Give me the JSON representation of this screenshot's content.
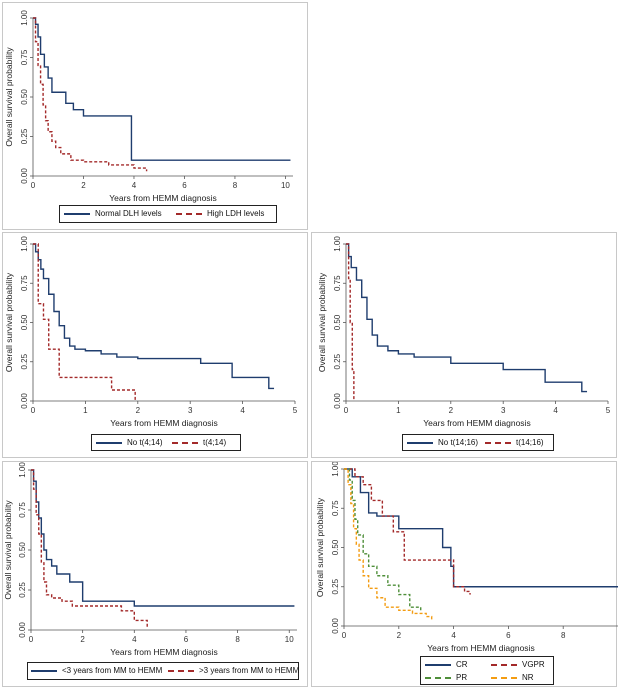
{
  "colors": {
    "blue": "#1f3d6e",
    "red": "#a32a2a",
    "green": "#4f8f3a",
    "orange": "#f39c12"
  },
  "chart_data": [
    {
      "id": "p1",
      "type": "line",
      "xlabel": "Years from HEMM diagnosis",
      "ylabel": "Overall survival probability",
      "xlim": [
        0,
        10.3
      ],
      "ylim": [
        0,
        1
      ],
      "xticks": [
        "0",
        "2",
        "4",
        "6",
        "8",
        "10"
      ],
      "yticks": [
        "0.00",
        "0.25",
        "0.50",
        "0.75",
        "1.00"
      ],
      "series": [
        {
          "name": "Normal DLH levels",
          "color": "#1f3d6e",
          "dash": "solid",
          "x": [
            0,
            0.1,
            0.2,
            0.3,
            0.45,
            0.6,
            0.75,
            0.95,
            1.3,
            1.6,
            2.0,
            3.0,
            3.8,
            3.9,
            10.2
          ],
          "y": [
            1.0,
            0.96,
            0.88,
            0.77,
            0.69,
            0.62,
            0.53,
            0.53,
            0.46,
            0.42,
            0.38,
            0.38,
            0.38,
            0.1,
            0.1
          ]
        },
        {
          "name": "High LDH levels",
          "color": "#a32a2a",
          "dash": "dashed",
          "x": [
            0,
            0.1,
            0.2,
            0.3,
            0.4,
            0.5,
            0.6,
            0.75,
            0.9,
            1.1,
            1.5,
            2.0,
            3.0,
            4.0,
            4.5
          ],
          "y": [
            1.0,
            0.85,
            0.7,
            0.58,
            0.45,
            0.35,
            0.28,
            0.22,
            0.18,
            0.14,
            0.1,
            0.09,
            0.07,
            0.05,
            0.03
          ]
        }
      ]
    },
    {
      "id": "p2",
      "type": "line",
      "xlabel": "Years from HEMM diagnosis",
      "ylabel": "Overall survival probability",
      "xlim": [
        0,
        5
      ],
      "ylim": [
        0,
        1
      ],
      "xticks": [
        "0",
        "1",
        "2",
        "3",
        "4",
        "5"
      ],
      "yticks": [
        "0.00",
        "0.25",
        "0.50",
        "0.75",
        "1.00"
      ],
      "series": [
        {
          "name": "No t(4;14)",
          "color": "#1f3d6e",
          "dash": "solid",
          "x": [
            0,
            0.05,
            0.1,
            0.15,
            0.2,
            0.3,
            0.4,
            0.5,
            0.6,
            0.7,
            0.8,
            1.0,
            1.3,
            1.6,
            2.0,
            3.2,
            3.8,
            4.5,
            4.6
          ],
          "y": [
            1.0,
            0.95,
            0.9,
            0.84,
            0.78,
            0.68,
            0.57,
            0.48,
            0.4,
            0.35,
            0.33,
            0.32,
            0.3,
            0.28,
            0.27,
            0.24,
            0.15,
            0.08,
            0.08
          ]
        },
        {
          "name": "t(4;14)",
          "color": "#a32a2a",
          "dash": "dashed",
          "x": [
            0,
            0.1,
            0.2,
            0.3,
            0.5,
            1.3,
            1.5,
            1.95
          ],
          "y": [
            1.0,
            0.62,
            0.52,
            0.33,
            0.15,
            0.15,
            0.07,
            0.0
          ]
        }
      ]
    },
    {
      "id": "p3",
      "type": "line",
      "xlabel": "Years from HEMM diagnosis",
      "ylabel": "Overall survival probability",
      "xlim": [
        0,
        5
      ],
      "ylim": [
        0,
        1
      ],
      "xticks": [
        "0",
        "1",
        "2",
        "3",
        "4",
        "5"
      ],
      "yticks": [
        "0.00",
        "0.25",
        "0.50",
        "0.75",
        "1.00"
      ],
      "series": [
        {
          "name": "No t(14;16)",
          "color": "#1f3d6e",
          "dash": "solid",
          "x": [
            0,
            0.05,
            0.1,
            0.2,
            0.3,
            0.4,
            0.5,
            0.6,
            0.8,
            1.0,
            1.3,
            2.0,
            3.0,
            3.8,
            4.5,
            4.6
          ],
          "y": [
            1.0,
            0.92,
            0.85,
            0.77,
            0.66,
            0.52,
            0.42,
            0.35,
            0.32,
            0.3,
            0.28,
            0.24,
            0.2,
            0.12,
            0.06,
            0.06
          ]
        },
        {
          "name": "t(14;16)",
          "color": "#a32a2a",
          "dash": "dashed",
          "x": [
            0,
            0.05,
            0.08,
            0.12,
            0.15
          ],
          "y": [
            1.0,
            0.78,
            0.5,
            0.2,
            0.0
          ]
        }
      ]
    },
    {
      "id": "p4",
      "type": "line",
      "xlabel": "Years from HEMM diagnosis",
      "ylabel": "Overall survival probability",
      "xlim": [
        0,
        10.3
      ],
      "ylim": [
        0,
        1
      ],
      "xticks": [
        "0",
        "2",
        "4",
        "6",
        "8",
        "10"
      ],
      "yticks": [
        "0.00",
        "0.25",
        "0.50",
        "0.75",
        "1.00"
      ],
      "series": [
        {
          "name": "<3 years from MM to HEMM",
          "color": "#1f3d6e",
          "dash": "solid",
          "x": [
            0,
            0.1,
            0.2,
            0.3,
            0.4,
            0.5,
            0.6,
            0.8,
            1.0,
            1.5,
            2.0,
            2.5,
            4.0,
            10.2
          ],
          "y": [
            1.0,
            0.93,
            0.8,
            0.7,
            0.6,
            0.5,
            0.44,
            0.4,
            0.35,
            0.3,
            0.18,
            0.18,
            0.15,
            0.15
          ]
        },
        {
          "name": ">3 years from MM to HEMM",
          "color": "#a32a2a",
          "dash": "dashed",
          "x": [
            0,
            0.1,
            0.2,
            0.3,
            0.4,
            0.5,
            0.6,
            0.8,
            1.2,
            1.6,
            2.0,
            3.5,
            4.0,
            4.5
          ],
          "y": [
            1.0,
            0.88,
            0.72,
            0.6,
            0.42,
            0.3,
            0.22,
            0.2,
            0.18,
            0.15,
            0.15,
            0.12,
            0.06,
            0.02
          ]
        }
      ]
    },
    {
      "id": "p5",
      "type": "line",
      "xlabel": "Years from HEMM diagnosis",
      "ylabel": "Overall survival probability",
      "xlim": [
        0,
        10
      ],
      "ylim": [
        0,
        1
      ],
      "xticks": [
        "0",
        "2",
        "4",
        "6",
        "8"
      ],
      "yticks": [
        "0.00",
        "0.25",
        "0.50",
        "0.75",
        "1.00"
      ],
      "series": [
        {
          "name": "CR",
          "color": "#1f3d6e",
          "dash": "solid",
          "x": [
            0,
            0.3,
            0.6,
            0.9,
            1.2,
            2.0,
            3.2,
            3.6,
            3.9,
            4.0,
            10
          ],
          "y": [
            1.0,
            0.95,
            0.85,
            0.72,
            0.7,
            0.62,
            0.62,
            0.5,
            0.38,
            0.25,
            0.25
          ]
        },
        {
          "name": "VGPR",
          "color": "#a32a2a",
          "dash": "dashed",
          "x": [
            0,
            0.4,
            0.7,
            1.0,
            1.4,
            1.8,
            2.2,
            3.9,
            4.0,
            4.4,
            4.6
          ],
          "y": [
            1.0,
            0.95,
            0.9,
            0.8,
            0.7,
            0.6,
            0.42,
            0.42,
            0.25,
            0.22,
            0.2
          ]
        },
        {
          "name": "PR",
          "color": "#4f8f3a",
          "dash": "dashed",
          "x": [
            0,
            0.2,
            0.3,
            0.4,
            0.5,
            0.7,
            0.9,
            1.2,
            1.6,
            2.0,
            2.4,
            2.8
          ],
          "y": [
            1.0,
            0.93,
            0.8,
            0.68,
            0.58,
            0.46,
            0.38,
            0.32,
            0.26,
            0.2,
            0.12,
            0.1
          ]
        },
        {
          "name": "NR",
          "color": "#f39c12",
          "dash": "dashed",
          "x": [
            0,
            0.15,
            0.25,
            0.35,
            0.45,
            0.55,
            0.7,
            0.9,
            1.2,
            1.5,
            2.0,
            2.5,
            3.0,
            3.2
          ],
          "y": [
            1.0,
            0.9,
            0.78,
            0.62,
            0.52,
            0.42,
            0.32,
            0.24,
            0.18,
            0.12,
            0.1,
            0.08,
            0.06,
            0.03
          ]
        }
      ]
    }
  ]
}
